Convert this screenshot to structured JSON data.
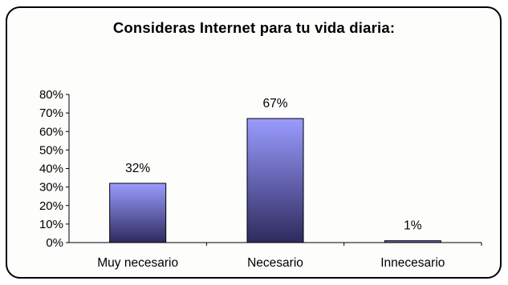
{
  "chart_data": {
    "type": "bar",
    "title": "Consideras Internet para tu vida diaria:",
    "categories": [
      "Muy necesario",
      "Necesario",
      "Innecesario"
    ],
    "values": [
      32,
      67,
      1
    ],
    "data_labels": [
      "32%",
      "67%",
      "1%"
    ],
    "ylim": [
      0,
      80
    ],
    "yticks": [
      "0%",
      "10%",
      "20%",
      "30%",
      "40%",
      "50%",
      "60%",
      "70%",
      "80%"
    ],
    "xlabel": "",
    "ylabel": "",
    "grid": false,
    "legend": "none",
    "bar_gradient": [
      "#9a9cff",
      "#2e2a5e"
    ]
  }
}
